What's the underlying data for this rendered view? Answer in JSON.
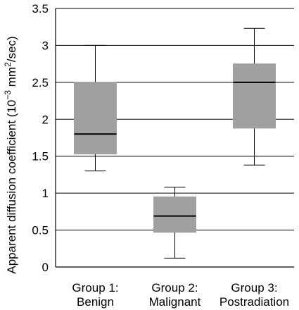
{
  "chart_data": {
    "type": "box",
    "title": "",
    "xlabel": "",
    "ylabel": "Apparent diffusion coefficient (10",
    "ylabel_exponent": "−3",
    "ylabel_unit": " mm",
    "ylabel_unit_exponent": "2",
    "ylabel_suffix": "/sec)",
    "ylim": [
      0,
      3.5
    ],
    "yticks": [
      "0",
      "0.5",
      "1",
      "1.5",
      "2",
      "2.5",
      "3",
      "3.5"
    ],
    "grid": true,
    "categories": [
      {
        "line1": "Group 1:",
        "line2": "Benign"
      },
      {
        "line1": "Group 2:",
        "line2": "Malignant"
      },
      {
        "line1": "Group 3:",
        "line2": "Postradiation"
      }
    ],
    "boxes": [
      {
        "min": 1.3,
        "q1": 1.53,
        "median": 1.8,
        "q3": 2.5,
        "max": 3.0
      },
      {
        "min": 0.12,
        "q1": 0.47,
        "median": 0.69,
        "q3": 0.95,
        "max": 1.08
      },
      {
        "min": 1.38,
        "q1": 1.88,
        "median": 2.5,
        "q3": 2.75,
        "max": 3.23
      }
    ],
    "box_color": "#a0a0a0",
    "line_color": "#000000"
  }
}
